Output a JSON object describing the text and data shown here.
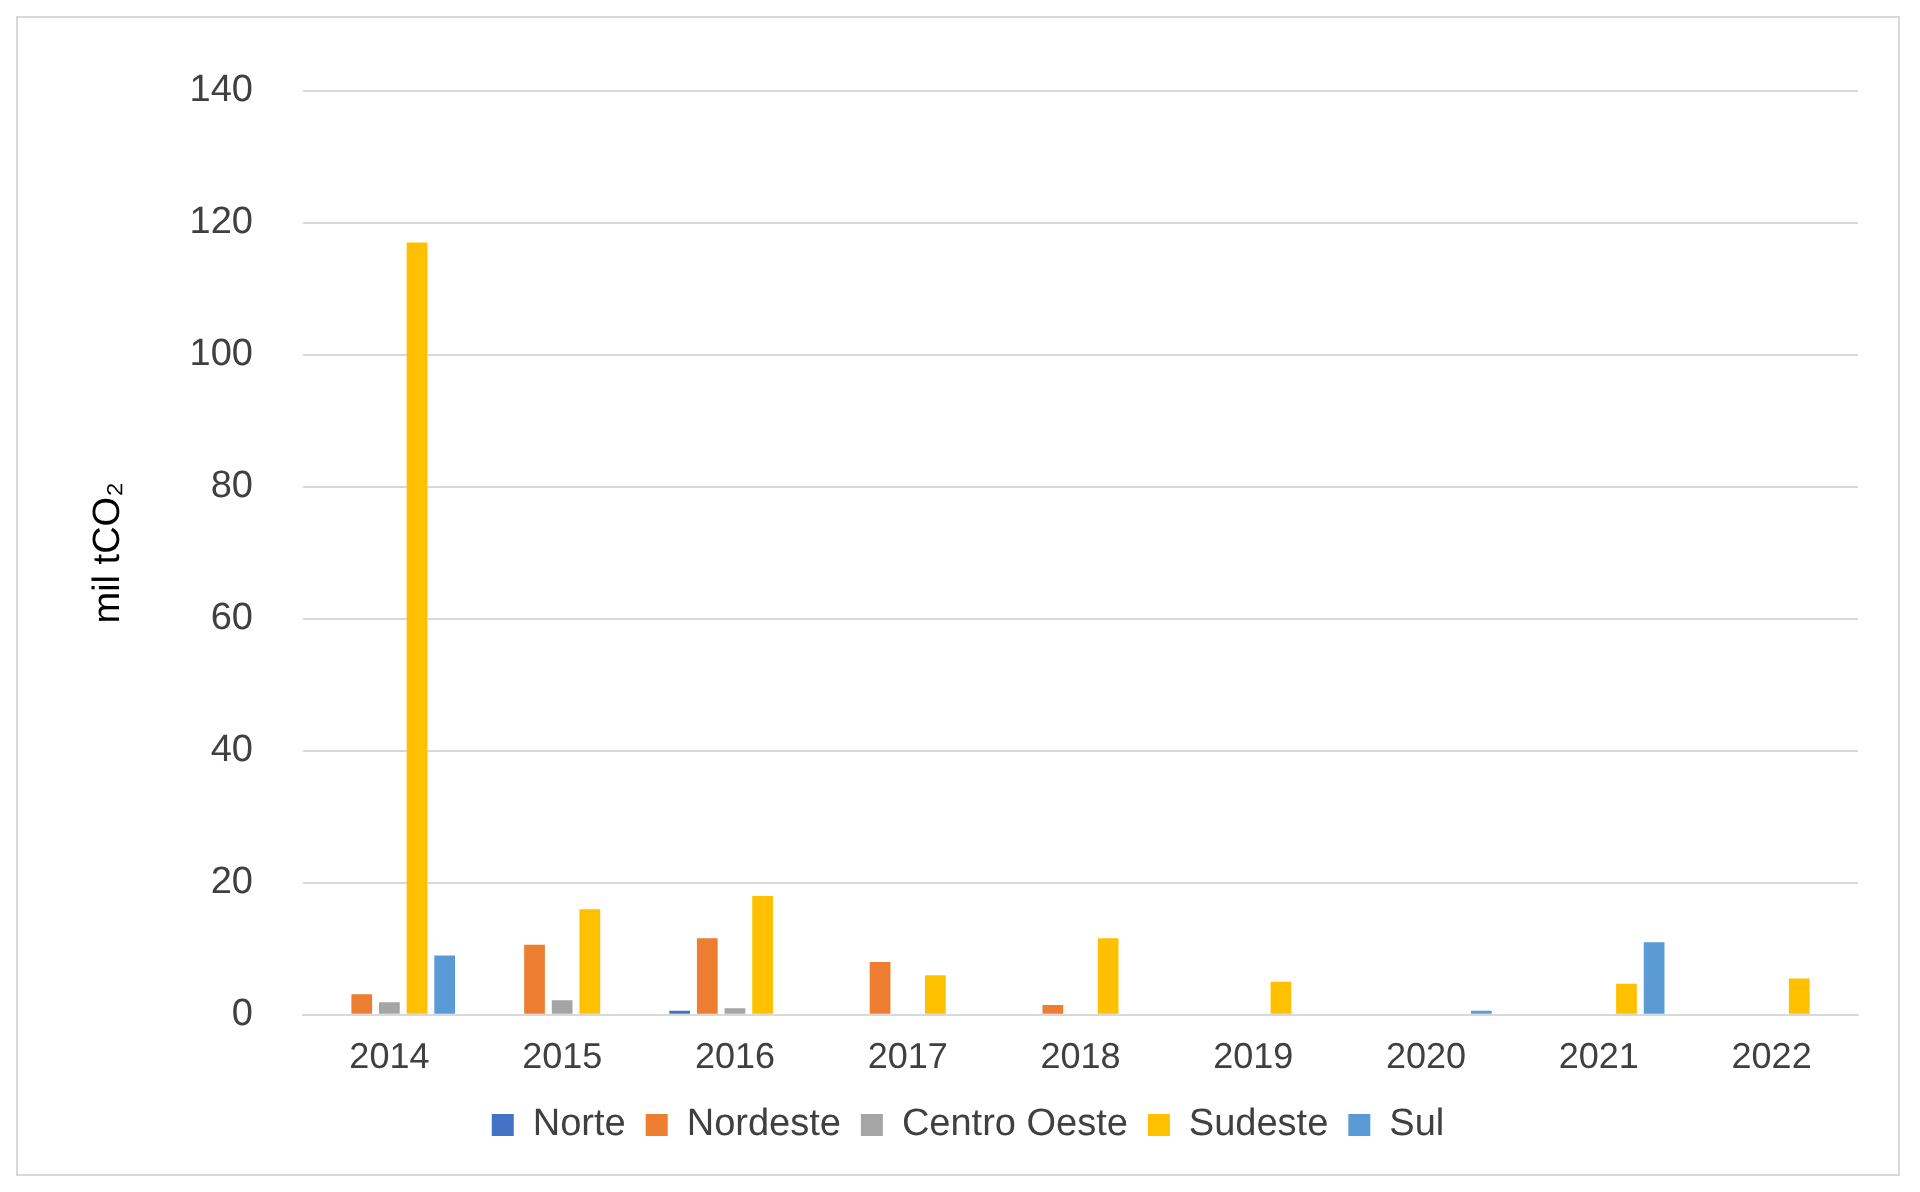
{
  "chart_data": {
    "type": "bar",
    "ylabel": "mil tCO₂",
    "categories": [
      "2014",
      "2015",
      "2016",
      "2017",
      "2018",
      "2019",
      "2020",
      "2021",
      "2022"
    ],
    "series": [
      {
        "name": "Norte",
        "color": "#4472c4",
        "values": [
          null,
          null,
          0.6,
          null,
          null,
          null,
          null,
          null,
          null
        ]
      },
      {
        "name": "Nordeste",
        "color": "#ed7d31",
        "values": [
          3.1,
          10.6,
          11.6,
          8,
          1.5,
          null,
          null,
          null,
          null
        ]
      },
      {
        "name": "Centro Oeste",
        "color": "#a5a5a5",
        "values": [
          1.9,
          2.2,
          1,
          null,
          null,
          null,
          null,
          null,
          null
        ]
      },
      {
        "name": "Sudeste",
        "color": "#ffc000",
        "values": [
          117,
          16,
          18,
          6,
          11.6,
          5,
          null,
          4.7,
          5.5
        ]
      },
      {
        "name": "Sul",
        "color": "#5b9bd5",
        "values": [
          9,
          null,
          null,
          null,
          null,
          null,
          0.6,
          11,
          null
        ]
      }
    ],
    "ylim": [
      0,
      140
    ],
    "yticks": [
      0,
      20,
      40,
      60,
      80,
      100,
      120,
      140
    ],
    "grid": "y",
    "legend": "bottom"
  }
}
